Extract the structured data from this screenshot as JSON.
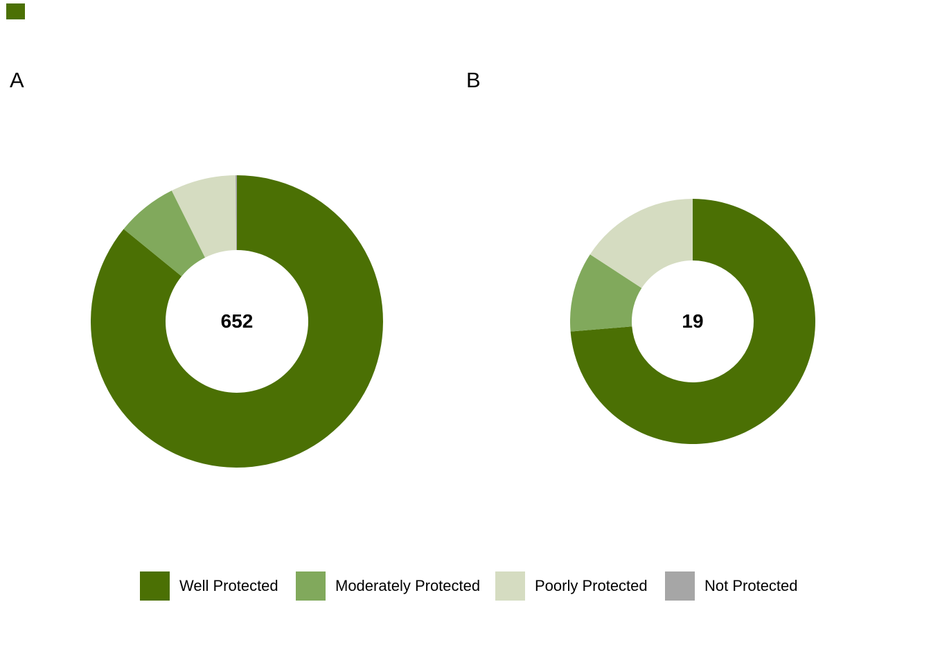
{
  "figure": {
    "panel_a_label": "A",
    "panel_b_label": "B",
    "background_color": "#ffffff"
  },
  "palette": {
    "well_protected": "#4B7004",
    "moderately_protected": "#81A95C",
    "poorly_protected": "#D5DCC1",
    "not_protected": "#A6A6A6"
  },
  "legend": {
    "position": "bottom",
    "items": [
      {
        "label": "Well Protected",
        "color": "#4B7004"
      },
      {
        "label": "Moderately Protected",
        "color": "#81A95C"
      },
      {
        "label": "Poorly Protected",
        "color": "#D5DCC1"
      },
      {
        "label": "Not Protected",
        "color": "#A6A6A6"
      }
    ]
  },
  "chart_data": [
    {
      "type": "pie",
      "subtype": "donut",
      "panel": "A",
      "categories": [
        "Well Protected",
        "Moderately Protected",
        "Poorly Protected",
        "Not Protected"
      ],
      "values": [
        560,
        44,
        47,
        1
      ],
      "total": 652,
      "center_label": "652",
      "colors": [
        "#4B7004",
        "#81A95C",
        "#D5DCC1",
        "#A6A6A6"
      ],
      "start_angle_deg": 0,
      "direction": "clockwise",
      "legend_position": "bottom"
    },
    {
      "type": "pie",
      "subtype": "donut",
      "panel": "B",
      "categories": [
        "Well Protected",
        "Moderately Protected",
        "Poorly Protected",
        "Not Protected"
      ],
      "values": [
        14,
        2,
        3,
        0
      ],
      "total": 19,
      "center_label": "19",
      "colors": [
        "#4B7004",
        "#81A95C",
        "#D5DCC1",
        "#A6A6A6"
      ],
      "start_angle_deg": 0,
      "direction": "clockwise",
      "legend_position": "bottom"
    }
  ]
}
